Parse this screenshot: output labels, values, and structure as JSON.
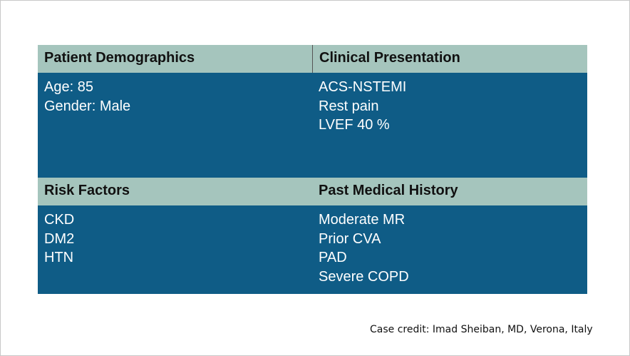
{
  "table": {
    "row1": {
      "left_header": "Patient Demographics",
      "right_header": "Clinical Presentation",
      "left_items": [
        "Age: 85",
        "Gender: Male"
      ],
      "right_items": [
        "ACS-NSTEMI",
        "Rest pain",
        "LVEF 40 %"
      ]
    },
    "row2": {
      "left_header": "Risk Factors",
      "right_header": "Past Medical History",
      "left_items": [
        "CKD",
        "DM2",
        "HTN"
      ],
      "right_items": [
        "Moderate MR",
        "Prior CVA",
        "PAD",
        "Severe COPD"
      ]
    }
  },
  "footer": {
    "credit": "Case credit: Imad Sheiban, MD, Verona, Italy"
  },
  "colors": {
    "header_bg": "#a5c5bd",
    "body_bg": "#0f5c86"
  }
}
